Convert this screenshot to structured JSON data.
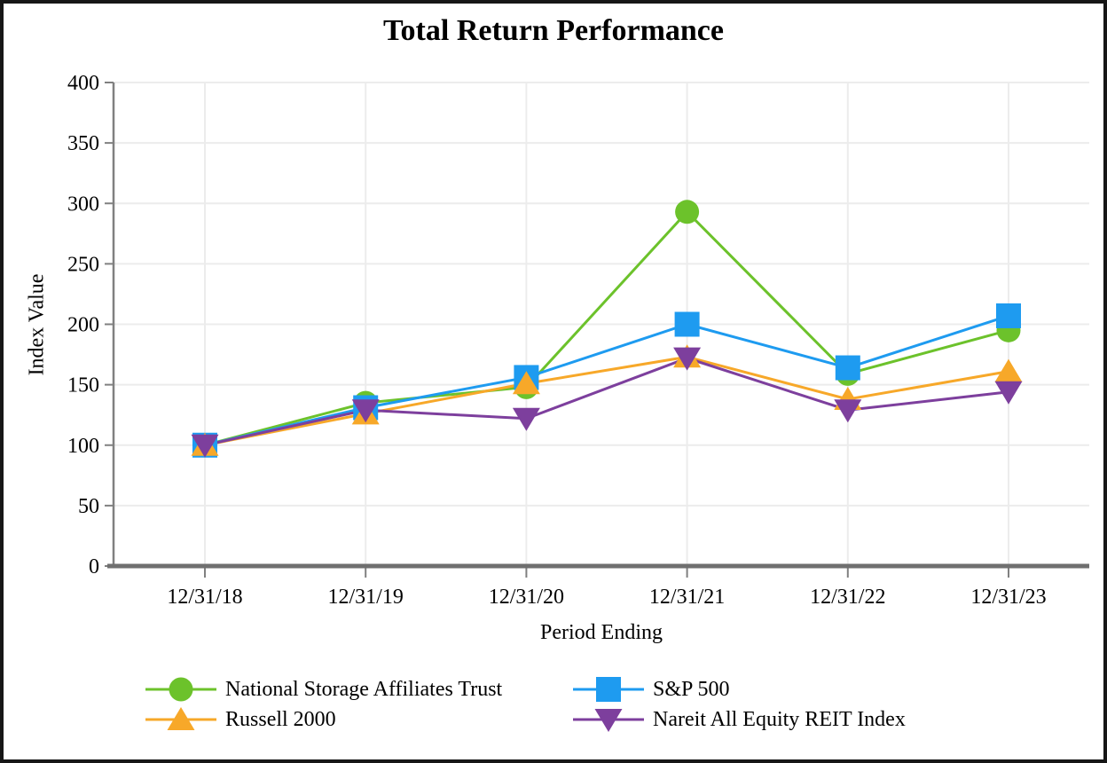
{
  "chart_data": {
    "type": "line",
    "title": "Total Return Performance",
    "xlabel": "Period Ending",
    "ylabel": "Index Value",
    "categories": [
      "12/31/18",
      "12/31/19",
      "12/31/20",
      "12/31/21",
      "12/31/22",
      "12/31/23"
    ],
    "series": [
      {
        "name": "National Storage Affiliates Trust",
        "marker": "circle",
        "color": "#6CC22B",
        "values": [
          100,
          135,
          148,
          293,
          159,
          195
        ]
      },
      {
        "name": "S&P 500",
        "marker": "square",
        "color": "#1E9BF0",
        "values": [
          100,
          131,
          156,
          200,
          164,
          207
        ]
      },
      {
        "name": "Russell 2000",
        "marker": "triangle-up",
        "color": "#F7A829",
        "values": [
          100,
          126,
          151,
          173,
          138,
          161
        ]
      },
      {
        "name": "Nareit All Equity REIT Index",
        "marker": "triangle-down",
        "color": "#7D3F9D",
        "values": [
          100,
          129,
          122,
          172,
          129,
          144
        ]
      }
    ],
    "ylim": [
      0,
      400
    ],
    "yticks": [
      0,
      50,
      100,
      150,
      200,
      250,
      300,
      350,
      400
    ],
    "grid": true,
    "legend_position": "bottom",
    "legend_layout_row_major_2col": [
      "National Storage Affiliates Trust",
      "S&P 500",
      "Russell 2000",
      "Nareit All Equity REIT Index"
    ]
  },
  "palette": {
    "background": "#FFFFFF",
    "frame_border": "#161616",
    "gridline": "#ECECEC",
    "y_axis_line": "#808080",
    "x_axis_line": "#6F6F6F",
    "tick_mark": "#808080",
    "text": "#000000"
  }
}
